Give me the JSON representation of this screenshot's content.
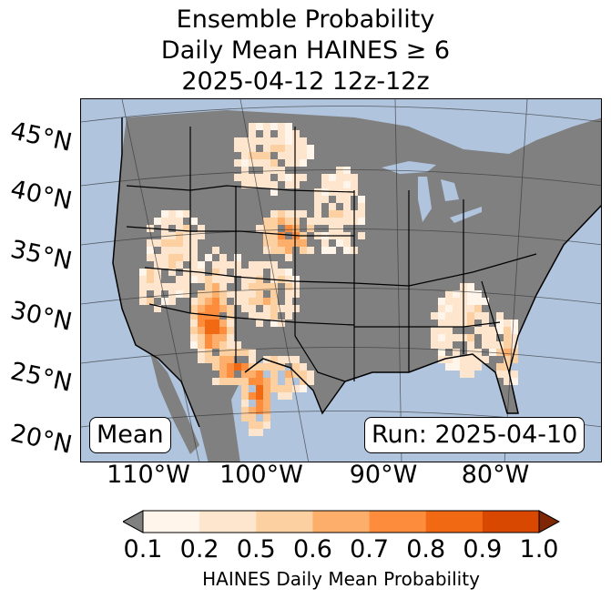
{
  "title": {
    "line1": "Ensemble Probability",
    "line2": "Daily Mean HAINES ≥ 6",
    "line3": "2025-04-12 12z-12z"
  },
  "map": {
    "lat_labels": [
      "45°N",
      "40°N",
      "35°N",
      "30°N",
      "25°N",
      "20°N"
    ],
    "lon_labels": [
      "110°W",
      "100°W",
      "90°W",
      "80°W"
    ],
    "mean_label": "Mean",
    "run_label": "Run: 2025-04-10",
    "ocean_color": "#b0c4de",
    "land_missing_color": "#808080"
  },
  "colorbar": {
    "ticks": [
      "0.1",
      "0.2",
      "0.5",
      "0.6",
      "0.7",
      "0.8",
      "0.9",
      "1.0"
    ],
    "label": "HAINES Daily Mean Probability",
    "under_color": "#808080",
    "over_color": "#7f2704",
    "colors": [
      "#fff5eb",
      "#fee6ce",
      "#fdd0a2",
      "#fdae6b",
      "#fd8d3c",
      "#f16913",
      "#d94801"
    ]
  }
}
